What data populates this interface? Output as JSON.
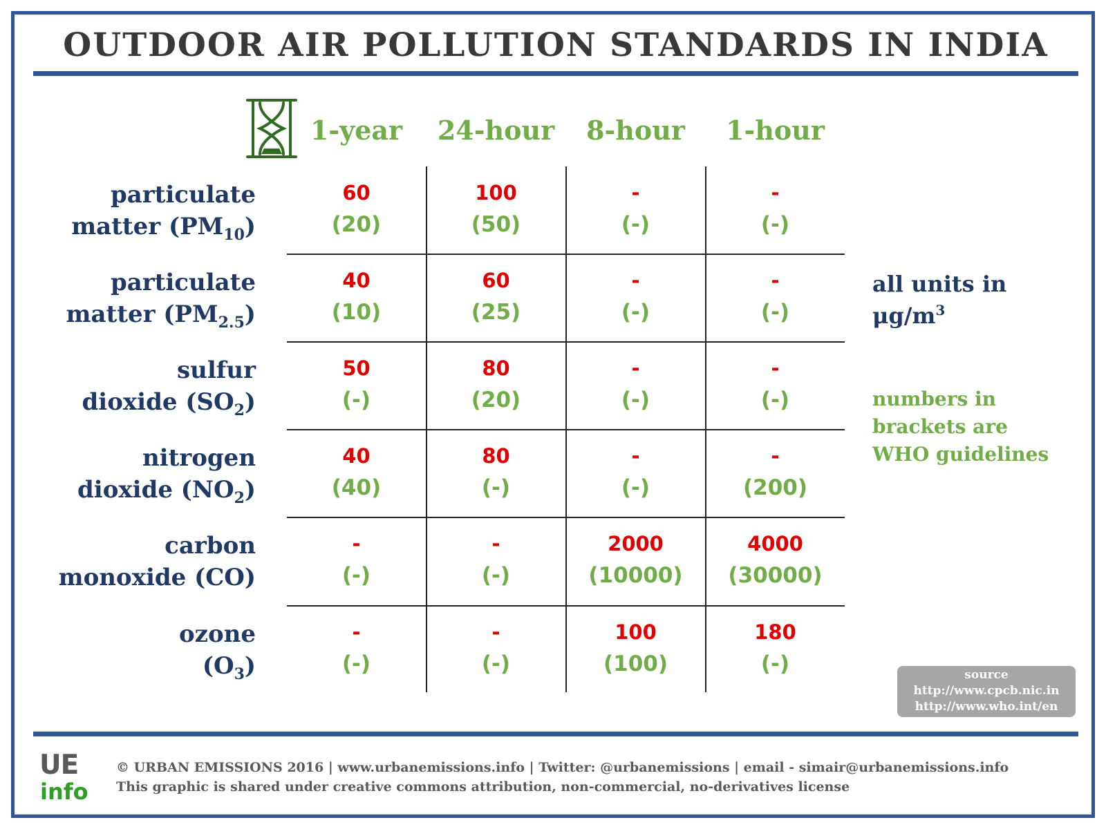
{
  "title": "OUTDOOR AIR POLLUTION STANDARDS IN INDIA",
  "colors": {
    "border": "#2f5597",
    "india": "#e00000",
    "who": "#70ad47",
    "pollutant": "#1f3864",
    "source_box": "#a6a6a6"
  },
  "icon": "hourglass-icon",
  "periods": [
    "1-year",
    "24-hour",
    "8-hour",
    "1-hour"
  ],
  "pollutants": [
    {
      "line1": "particulate",
      "line2": "matter (PM",
      "sub": "10",
      "suffix": ")",
      "values": [
        {
          "india": "60",
          "who": "(20)"
        },
        {
          "india": "100",
          "who": "(50)"
        },
        {
          "india": "-",
          "who": "(-)"
        },
        {
          "india": "-",
          "who": "(-)"
        }
      ]
    },
    {
      "line1": "particulate",
      "line2": "matter (PM",
      "sub": "2.5",
      "suffix": ")",
      "values": [
        {
          "india": "40",
          "who": "(10)"
        },
        {
          "india": "60",
          "who": "(25)"
        },
        {
          "india": "-",
          "who": "(-)"
        },
        {
          "india": "-",
          "who": "(-)"
        }
      ]
    },
    {
      "line1": "sulfur",
      "line2": "dioxide (SO",
      "sub": "2",
      "suffix": ")",
      "values": [
        {
          "india": "50",
          "who": "(-)"
        },
        {
          "india": "80",
          "who": "(20)"
        },
        {
          "india": "-",
          "who": "(-)"
        },
        {
          "india": "-",
          "who": "(-)"
        }
      ]
    },
    {
      "line1": "nitrogen",
      "line2": "dioxide (NO",
      "sub": "2",
      "suffix": ")",
      "values": [
        {
          "india": "40",
          "who": "(40)"
        },
        {
          "india": "80",
          "who": "(-)"
        },
        {
          "india": "-",
          "who": "(-)"
        },
        {
          "india": "-",
          "who": "(200)"
        }
      ]
    },
    {
      "line1": "carbon",
      "line2": "monoxide (CO)",
      "sub": "",
      "suffix": "",
      "values": [
        {
          "india": "-",
          "who": "(-)"
        },
        {
          "india": "-",
          "who": "(-)"
        },
        {
          "india": "2000",
          "who": "(10000)"
        },
        {
          "india": "4000",
          "who": "(30000)"
        }
      ]
    },
    {
      "line1": "ozone",
      "line2": "(O",
      "sub": "3",
      "suffix": ")",
      "values": [
        {
          "india": "-",
          "who": "(-)"
        },
        {
          "india": "-",
          "who": "(-)"
        },
        {
          "india": "100",
          "who": "(100)"
        },
        {
          "india": "180",
          "who": "(-)"
        }
      ]
    }
  ],
  "units": {
    "line1": "all units in",
    "line2": "μg/m",
    "sup": "3"
  },
  "who_note": {
    "line1": "numbers in",
    "line2": "brackets are",
    "line3": "WHO guidelines"
  },
  "source": {
    "label": "source",
    "url1": "http://www.cpcb.nic.in",
    "url2": "http://www.who.int/en"
  },
  "logo": {
    "top": "UE",
    "bottom": "info"
  },
  "footer": {
    "line1": "© URBAN EMISSIONS 2016 | www.urbanemissions.info | Twitter: @urbanemissions | email - simair@urbanemissions.info",
    "line2": "This graphic is shared under creative commons attribution, non-commercial, no-derivatives license"
  }
}
